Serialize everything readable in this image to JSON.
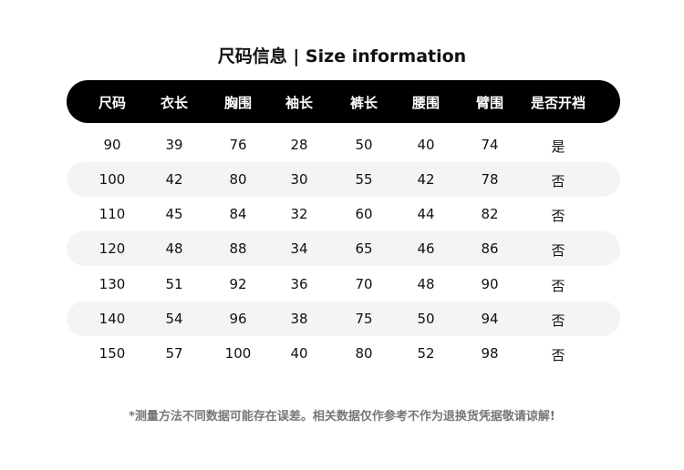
{
  "title": "尺码信息 | Size information",
  "columns": [
    "尺码",
    "衣长",
    "胸围",
    "袖长",
    "裤长",
    "腰围",
    "臂围",
    "是否开裆"
  ],
  "rows": [
    [
      "90",
      "39",
      "76",
      "28",
      "50",
      "40",
      "74",
      "是"
    ],
    [
      "100",
      "42",
      "80",
      "30",
      "55",
      "42",
      "78",
      "否"
    ],
    [
      "110",
      "45",
      "84",
      "32",
      "60",
      "44",
      "82",
      "否"
    ],
    [
      "120",
      "48",
      "88",
      "34",
      "65",
      "46",
      "86",
      "否"
    ],
    [
      "130",
      "51",
      "92",
      "36",
      "70",
      "48",
      "90",
      "否"
    ],
    [
      "140",
      "54",
      "96",
      "38",
      "75",
      "50",
      "94",
      "否"
    ],
    [
      "150",
      "57",
      "100",
      "40",
      "80",
      "52",
      "98",
      "否"
    ]
  ],
  "note": "*测量方法不同数据可能存在误差。相关数据仅作参考不作为退换货凭据敬请谅解!"
}
